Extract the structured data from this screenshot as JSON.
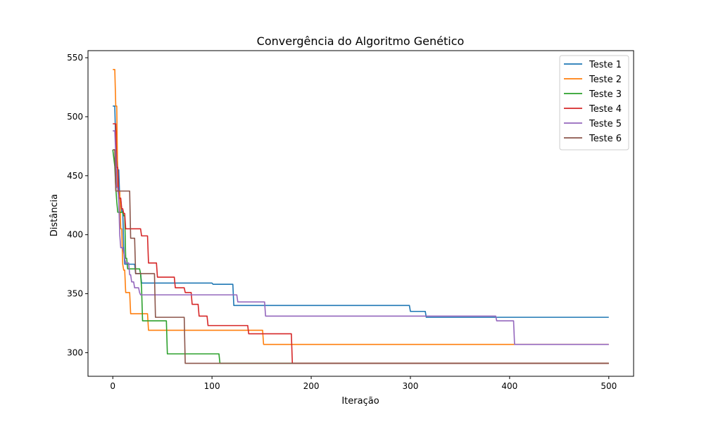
{
  "chart_data": {
    "type": "line",
    "title": "Convergência do Algoritmo Genético",
    "xlabel": "Iteração",
    "ylabel": "Distância",
    "xlim": [
      -25,
      525
    ],
    "ylim": [
      280,
      556
    ],
    "xticks": [
      0,
      100,
      200,
      300,
      400,
      500
    ],
    "yticks": [
      300,
      350,
      400,
      450,
      500,
      550
    ],
    "grid": false,
    "legend_position": "top-right",
    "series": [
      {
        "name": "Teste 1",
        "color": "#1f77b4",
        "points": [
          [
            0,
            509
          ],
          [
            2,
            509
          ],
          [
            3,
            475
          ],
          [
            4,
            475
          ],
          [
            5,
            455
          ],
          [
            6,
            455
          ],
          [
            7,
            430
          ],
          [
            8,
            430
          ],
          [
            9,
            420
          ],
          [
            10,
            420
          ],
          [
            11,
            390
          ],
          [
            12,
            375
          ],
          [
            22,
            375
          ],
          [
            23,
            367
          ],
          [
            28,
            367
          ],
          [
            29,
            359
          ],
          [
            100,
            359
          ],
          [
            101,
            358
          ],
          [
            121,
            358
          ],
          [
            122,
            340
          ],
          [
            299,
            340
          ],
          [
            300,
            335
          ],
          [
            315,
            335
          ],
          [
            316,
            330
          ],
          [
            500,
            330
          ]
        ]
      },
      {
        "name": "Teste 2",
        "color": "#ff7f0e",
        "points": [
          [
            0,
            540
          ],
          [
            2,
            540
          ],
          [
            3,
            509
          ],
          [
            4,
            509
          ],
          [
            5,
            437
          ],
          [
            7,
            437
          ],
          [
            8,
            405
          ],
          [
            9,
            405
          ],
          [
            10,
            375
          ],
          [
            11,
            370
          ],
          [
            12,
            370
          ],
          [
            13,
            351
          ],
          [
            14,
            351
          ],
          [
            15,
            351
          ],
          [
            17,
            351
          ],
          [
            18,
            333
          ],
          [
            35,
            333
          ],
          [
            36,
            319
          ],
          [
            151,
            319
          ],
          [
            152,
            307
          ],
          [
            500,
            307
          ]
        ]
      },
      {
        "name": "Teste 3",
        "color": "#2ca02c",
        "points": [
          [
            0,
            472
          ],
          [
            2,
            458
          ],
          [
            3,
            440
          ],
          [
            4,
            428
          ],
          [
            5,
            419
          ],
          [
            10,
            419
          ],
          [
            11,
            416
          ],
          [
            12,
            416
          ],
          [
            13,
            380
          ],
          [
            14,
            380
          ],
          [
            15,
            371
          ],
          [
            27,
            371
          ],
          [
            28,
            367
          ],
          [
            29,
            355
          ],
          [
            30,
            327
          ],
          [
            54,
            327
          ],
          [
            55,
            299
          ],
          [
            107,
            299
          ],
          [
            108,
            291
          ],
          [
            500,
            291
          ]
        ]
      },
      {
        "name": "Teste 4",
        "color": "#d62728",
        "points": [
          [
            0,
            494
          ],
          [
            3,
            494
          ],
          [
            4,
            457
          ],
          [
            5,
            457
          ],
          [
            6,
            431
          ],
          [
            8,
            431
          ],
          [
            9,
            422
          ],
          [
            10,
            422
          ],
          [
            11,
            418
          ],
          [
            12,
            418
          ],
          [
            13,
            405
          ],
          [
            28,
            405
          ],
          [
            29,
            399
          ],
          [
            35,
            399
          ],
          [
            36,
            376
          ],
          [
            44,
            376
          ],
          [
            45,
            364
          ],
          [
            62,
            364
          ],
          [
            63,
            355
          ],
          [
            72,
            355
          ],
          [
            73,
            351
          ],
          [
            79,
            351
          ],
          [
            80,
            341
          ],
          [
            86,
            341
          ],
          [
            87,
            331
          ],
          [
            95,
            331
          ],
          [
            96,
            323
          ],
          [
            136,
            323
          ],
          [
            137,
            316
          ],
          [
            180,
            316
          ],
          [
            181,
            291
          ],
          [
            500,
            291
          ]
        ]
      },
      {
        "name": "Teste 5",
        "color": "#9467bd",
        "points": [
          [
            0,
            488
          ],
          [
            2,
            488
          ],
          [
            3,
            468
          ],
          [
            4,
            440
          ],
          [
            5,
            440
          ],
          [
            6,
            430
          ],
          [
            7,
            400
          ],
          [
            8,
            389
          ],
          [
            10,
            389
          ],
          [
            11,
            385
          ],
          [
            12,
            380
          ],
          [
            13,
            376
          ],
          [
            16,
            376
          ],
          [
            17,
            366
          ],
          [
            18,
            366
          ],
          [
            19,
            360
          ],
          [
            21,
            360
          ],
          [
            22,
            355
          ],
          [
            26,
            355
          ],
          [
            27,
            351
          ],
          [
            28,
            349
          ],
          [
            125,
            349
          ],
          [
            126,
            343
          ],
          [
            153,
            343
          ],
          [
            154,
            331
          ],
          [
            386,
            331
          ],
          [
            387,
            327
          ],
          [
            404,
            327
          ],
          [
            405,
            307
          ],
          [
            500,
            307
          ]
        ]
      },
      {
        "name": "Teste 6",
        "color": "#8c564b",
        "points": [
          [
            0,
            472
          ],
          [
            2,
            472
          ],
          [
            3,
            437
          ],
          [
            17,
            437
          ],
          [
            18,
            397
          ],
          [
            22,
            397
          ],
          [
            23,
            367
          ],
          [
            42,
            367
          ],
          [
            43,
            330
          ],
          [
            72,
            330
          ],
          [
            73,
            291
          ],
          [
            500,
            291
          ]
        ]
      }
    ]
  }
}
